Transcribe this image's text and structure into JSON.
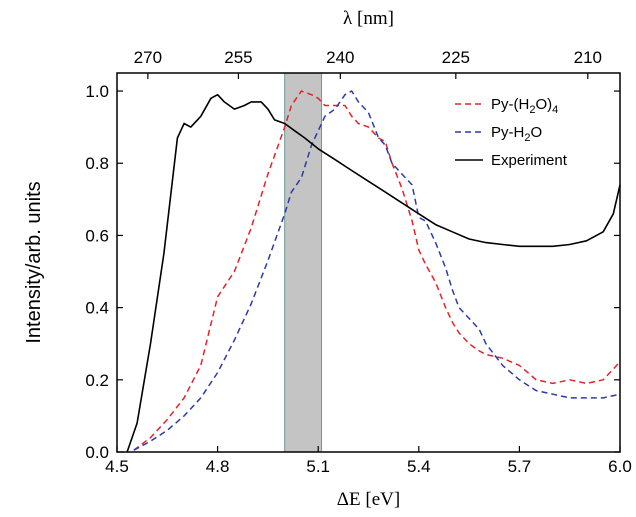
{
  "chart_data": {
    "type": "line",
    "xlabel": "ΔE [eV]",
    "top_xlabel": "λ [nm]",
    "ylabel": "Intensity/arb. units",
    "xlim": [
      4.5,
      6.0
    ],
    "ylim": [
      0.0,
      1.05
    ],
    "x_ticks": [
      4.5,
      4.8,
      5.1,
      5.4,
      5.7,
      6.0
    ],
    "x_tick_labels": [
      "4.5",
      "4.8",
      "5.1",
      "5.4",
      "5.7",
      "6.0"
    ],
    "y_ticks": [
      0.0,
      0.2,
      0.4,
      0.6,
      0.8,
      1.0
    ],
    "y_tick_labels": [
      "0.0",
      "0.2",
      "0.4",
      "0.6",
      "0.8",
      "1.0"
    ],
    "top_ticks_nm": [
      270,
      255,
      240,
      225,
      210
    ],
    "top_tick_labels": [
      "270",
      "255",
      "240",
      "225",
      "210"
    ],
    "shaded_band": [
      5.0,
      5.11
    ],
    "grid": false,
    "legend_position": "top-right",
    "series": [
      {
        "name": "Py-(H2O)4",
        "legend_main": "Py-(H",
        "legend_sub1": "2",
        "legend_mid": "O)",
        "legend_sub2": "4",
        "color": "#e0242a",
        "style": "dashed",
        "x": [
          4.55,
          4.6,
          4.65,
          4.7,
          4.75,
          4.8,
          4.85,
          4.9,
          4.95,
          5.0,
          5.02,
          5.05,
          5.08,
          5.1,
          5.12,
          5.15,
          5.18,
          5.2,
          5.22,
          5.25,
          5.28,
          5.3,
          5.32,
          5.35,
          5.38,
          5.4,
          5.42,
          5.45,
          5.48,
          5.5,
          5.52,
          5.55,
          5.58,
          5.6,
          5.65,
          5.7,
          5.75,
          5.8,
          5.85,
          5.9,
          5.95,
          6.0
        ],
        "y": [
          0.005,
          0.04,
          0.09,
          0.15,
          0.24,
          0.43,
          0.5,
          0.62,
          0.77,
          0.9,
          0.96,
          1.0,
          0.99,
          0.98,
          0.96,
          0.96,
          0.96,
          0.93,
          0.91,
          0.9,
          0.87,
          0.86,
          0.8,
          0.73,
          0.64,
          0.56,
          0.52,
          0.47,
          0.4,
          0.36,
          0.33,
          0.3,
          0.28,
          0.27,
          0.26,
          0.24,
          0.2,
          0.19,
          0.2,
          0.19,
          0.2,
          0.25
        ]
      },
      {
        "name": "Py-H2O",
        "legend_main": "Py-H",
        "legend_sub1": "2",
        "legend_mid": "O",
        "legend_sub2": "",
        "color": "#2a3aa8",
        "style": "dashed",
        "x": [
          4.55,
          4.6,
          4.65,
          4.7,
          4.75,
          4.8,
          4.85,
          4.9,
          4.95,
          5.0,
          5.02,
          5.05,
          5.08,
          5.1,
          5.12,
          5.15,
          5.18,
          5.2,
          5.22,
          5.25,
          5.28,
          5.3,
          5.32,
          5.35,
          5.38,
          5.4,
          5.42,
          5.45,
          5.48,
          5.5,
          5.52,
          5.55,
          5.58,
          5.6,
          5.65,
          5.7,
          5.75,
          5.8,
          5.85,
          5.9,
          5.95,
          6.0
        ],
        "y": [
          0.005,
          0.03,
          0.06,
          0.1,
          0.15,
          0.22,
          0.31,
          0.41,
          0.53,
          0.66,
          0.72,
          0.76,
          0.85,
          0.89,
          0.93,
          0.95,
          0.99,
          1.0,
          0.97,
          0.94,
          0.87,
          0.85,
          0.8,
          0.77,
          0.74,
          0.65,
          0.64,
          0.58,
          0.51,
          0.45,
          0.4,
          0.37,
          0.34,
          0.3,
          0.24,
          0.2,
          0.17,
          0.16,
          0.15,
          0.15,
          0.15,
          0.16
        ]
      },
      {
        "name": "Experiment",
        "legend_main": "Experiment",
        "legend_sub1": "",
        "legend_mid": "",
        "legend_sub2": "",
        "color": "#000000",
        "style": "solid",
        "x": [
          4.53,
          4.56,
          4.6,
          4.64,
          4.68,
          4.7,
          4.72,
          4.75,
          4.78,
          4.8,
          4.82,
          4.85,
          4.88,
          4.9,
          4.93,
          4.95,
          4.97,
          5.0,
          5.03,
          5.06,
          5.1,
          5.15,
          5.2,
          5.25,
          5.3,
          5.35,
          5.4,
          5.45,
          5.5,
          5.55,
          5.6,
          5.65,
          5.7,
          5.75,
          5.8,
          5.85,
          5.9,
          5.95,
          5.98,
          6.0
        ],
        "y": [
          0.0,
          0.08,
          0.3,
          0.55,
          0.87,
          0.91,
          0.9,
          0.93,
          0.98,
          0.99,
          0.97,
          0.95,
          0.96,
          0.97,
          0.97,
          0.95,
          0.92,
          0.91,
          0.89,
          0.87,
          0.84,
          0.81,
          0.78,
          0.75,
          0.72,
          0.69,
          0.66,
          0.63,
          0.61,
          0.59,
          0.58,
          0.575,
          0.57,
          0.57,
          0.57,
          0.575,
          0.585,
          0.61,
          0.66,
          0.74
        ]
      }
    ]
  }
}
